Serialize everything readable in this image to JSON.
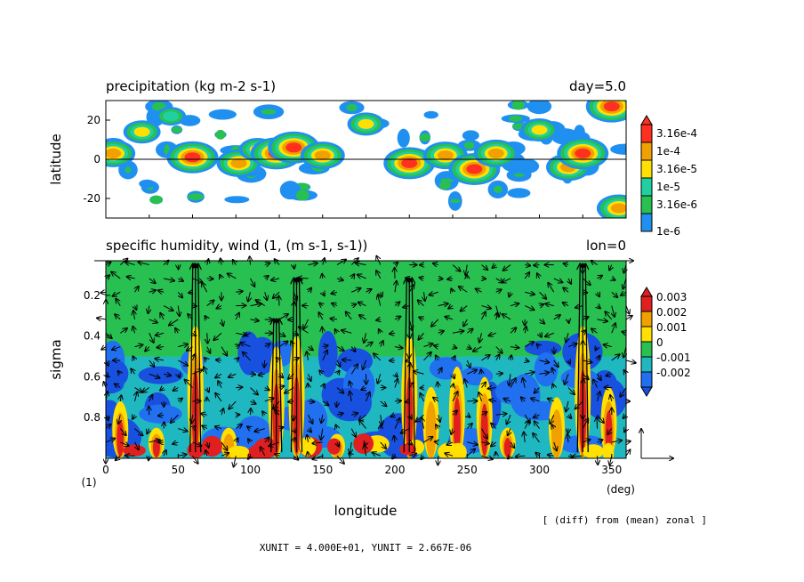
{
  "chart_data": [
    {
      "type": "heatmap",
      "title": "precipitation (kg m-2 s-1)",
      "title_right": "day=5.0",
      "ylabel": "latitude",
      "xlim": [
        0,
        360
      ],
      "ylim": [
        -30,
        30
      ],
      "yticks": [
        20,
        0,
        -20
      ],
      "zero_line": true,
      "colorbar": {
        "labels": [
          "3.16e-4",
          "1e-4",
          "3.16e-5",
          "1e-5",
          "3.16e-6",
          "1e-6"
        ],
        "colors": [
          "#ff3020",
          "#f0a000",
          "#ffe000",
          "#20d0a0",
          "#28c050",
          "#2090f0"
        ]
      },
      "features": [
        {
          "lon": 5,
          "lat": 3,
          "level": 4
        },
        {
          "lon": 25,
          "lat": 14,
          "level": 3
        },
        {
          "lon": 45,
          "lat": 22,
          "level": 2
        },
        {
          "lon": 60,
          "lat": 1,
          "level": 5
        },
        {
          "lon": 92,
          "lat": -2,
          "level": 4
        },
        {
          "lon": 105,
          "lat": 5,
          "level": 3
        },
        {
          "lon": 118,
          "lat": 3,
          "level": 5
        },
        {
          "lon": 130,
          "lat": 6,
          "level": 5
        },
        {
          "lon": 150,
          "lat": 2,
          "level": 4
        },
        {
          "lon": 180,
          "lat": 18,
          "level": 3
        },
        {
          "lon": 210,
          "lat": -2,
          "level": 5
        },
        {
          "lon": 235,
          "lat": 2,
          "level": 4
        },
        {
          "lon": 255,
          "lat": -5,
          "level": 5
        },
        {
          "lon": 270,
          "lat": 3,
          "level": 4
        },
        {
          "lon": 300,
          "lat": 15,
          "level": 3
        },
        {
          "lon": 320,
          "lat": -4,
          "level": 4
        },
        {
          "lon": 330,
          "lat": 3,
          "level": 5
        },
        {
          "lon": 350,
          "lat": 27,
          "level": 5
        },
        {
          "lon": 355,
          "lat": -25,
          "level": 4
        }
      ]
    },
    {
      "type": "heatmap",
      "title": "specific humidity, wind (1, (m s-1, s-1))",
      "title_right": "lon=0",
      "xlabel": "longitude",
      "ylabel": "sigma",
      "xlim": [
        0,
        360
      ],
      "ylim": [
        1.0,
        0.03
      ],
      "xticks": [
        0,
        50,
        100,
        150,
        200,
        250,
        300,
        350
      ],
      "yticks": [
        0.2,
        0.4,
        0.6,
        0.8
      ],
      "x_unit_label": "(deg)",
      "y_unit_label": "(1)",
      "colorbar": {
        "labels": [
          "0.003",
          "0.002",
          "0.001",
          "0",
          "-0.001",
          "-0.002"
        ],
        "colors": [
          "#e02020",
          "#f0a000",
          "#ffe000",
          "#28c050",
          "#20b8c0",
          "#2070f0",
          "#1850e0"
        ]
      },
      "moist_columns": [
        {
          "lon": 10,
          "top_sigma": 0.72,
          "strength": 0.003
        },
        {
          "lon": 35,
          "top_sigma": 0.85,
          "strength": 0.003
        },
        {
          "lon": 62,
          "top_sigma": 0.35,
          "strength": 0.003
        },
        {
          "lon": 85,
          "top_sigma": 0.85,
          "strength": 0.002
        },
        {
          "lon": 118,
          "top_sigma": 0.45,
          "strength": 0.003
        },
        {
          "lon": 132,
          "top_sigma": 0.4,
          "strength": 0.003
        },
        {
          "lon": 160,
          "top_sigma": 0.88,
          "strength": 0.002
        },
        {
          "lon": 210,
          "top_sigma": 0.4,
          "strength": 0.003
        },
        {
          "lon": 225,
          "top_sigma": 0.65,
          "strength": 0.002
        },
        {
          "lon": 243,
          "top_sigma": 0.55,
          "strength": 0.003
        },
        {
          "lon": 262,
          "top_sigma": 0.6,
          "strength": 0.003
        },
        {
          "lon": 278,
          "top_sigma": 0.85,
          "strength": 0.003
        },
        {
          "lon": 312,
          "top_sigma": 0.7,
          "strength": 0.002
        },
        {
          "lon": 330,
          "top_sigma": 0.35,
          "strength": 0.003
        },
        {
          "lon": 348,
          "top_sigma": 0.65,
          "strength": 0.003
        }
      ],
      "updrafts": [
        {
          "lon": 62,
          "top_sigma": 0.03
        },
        {
          "lon": 118,
          "top_sigma": 0.3
        },
        {
          "lon": 132,
          "top_sigma": 0.1
        },
        {
          "lon": 210,
          "top_sigma": 0.1
        },
        {
          "lon": 330,
          "top_sigma": 0.03
        }
      ],
      "reference_vector_label": ""
    }
  ],
  "footer": {
    "diff_note": "[ (diff) from (mean) zonal ]",
    "units": "XUNIT = 4.000E+01, YUNIT = 2.667E-06"
  }
}
